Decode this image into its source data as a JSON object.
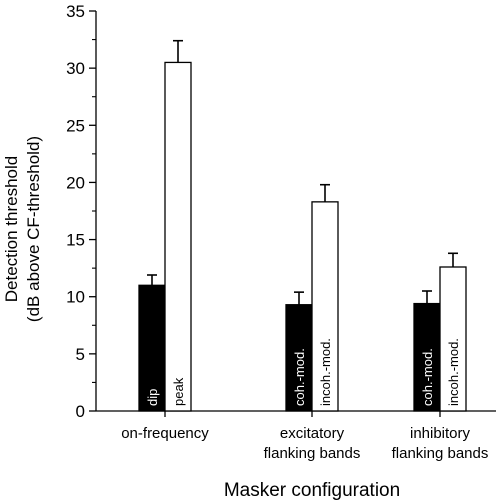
{
  "chart_data": {
    "type": "bar",
    "ylabel_line1": "Detection threshold",
    "ylabel_line2": "(dB above CF-threshold)",
    "xlabel": "Masker configuration",
    "ylim": [
      0,
      35
    ],
    "yticks": [
      0,
      5,
      10,
      15,
      20,
      25,
      30,
      35
    ],
    "groups": [
      {
        "label_lines": [
          "on-frequency"
        ],
        "bars": [
          {
            "label": "dip",
            "value": 11.0,
            "error": 0.9,
            "fill": "#000000",
            "text_color": "#ffffff"
          },
          {
            "label": "peak",
            "value": 30.5,
            "error": 1.9,
            "fill": "#ffffff",
            "text_color": "#000000"
          }
        ]
      },
      {
        "label_lines": [
          "excitatory",
          "flanking bands"
        ],
        "bars": [
          {
            "label": "coh.-mod.",
            "value": 9.3,
            "error": 1.1,
            "fill": "#000000",
            "text_color": "#ffffff"
          },
          {
            "label": "incoh.-mod.",
            "value": 18.3,
            "error": 1.5,
            "fill": "#ffffff",
            "text_color": "#000000"
          }
        ]
      },
      {
        "label_lines": [
          "inhibitory",
          "flanking bands"
        ],
        "bars": [
          {
            "label": "coh.-mod.",
            "value": 9.4,
            "error": 1.1,
            "fill": "#000000",
            "text_color": "#ffffff"
          },
          {
            "label": "incoh.-mod.",
            "value": 12.6,
            "error": 1.2,
            "fill": "#ffffff",
            "text_color": "#000000"
          }
        ]
      }
    ]
  }
}
